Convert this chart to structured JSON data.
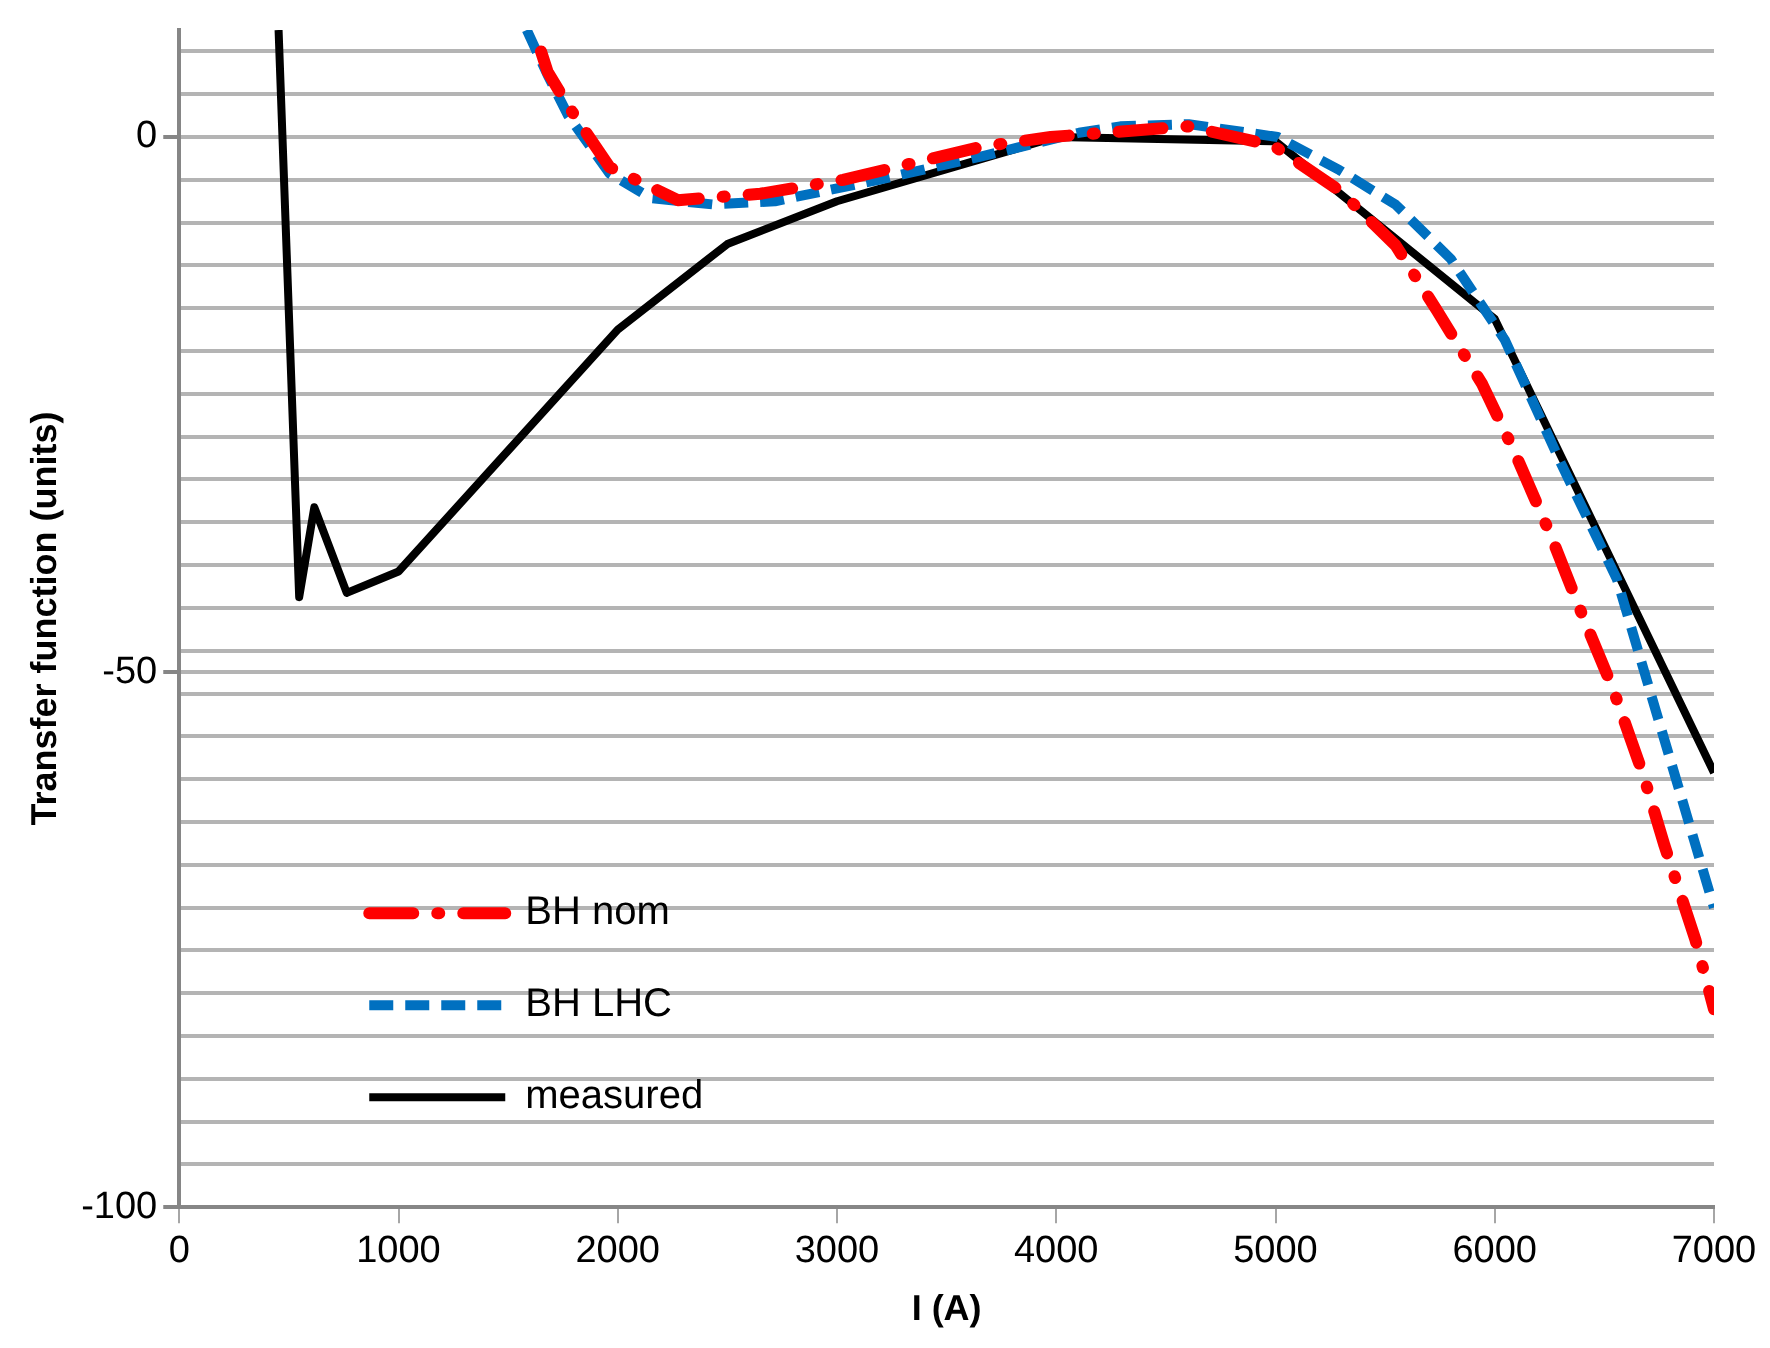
{
  "chart_data": {
    "type": "line",
    "xlabel": "I (A)",
    "ylabel": "Transfer function (units)",
    "xlim": [
      0,
      7000
    ],
    "xticks": [
      0,
      1000,
      2000,
      3000,
      4000,
      5000,
      6000,
      7000
    ],
    "ylim": [
      -100,
      10
    ],
    "yticks": [
      -100,
      {
        "value": -96,
        "label": null
      },
      {
        "value": -92,
        "label": null
      },
      {
        "value": -88,
        "label": null
      },
      {
        "value": -84,
        "label": null
      },
      {
        "value": -80,
        "label": null
      },
      {
        "value": -76,
        "label": null
      },
      {
        "value": -72,
        "label": null
      },
      {
        "value": -68,
        "label": null
      },
      {
        "value": -64,
        "label": null
      },
      {
        "value": -60,
        "label": null
      },
      {
        "value": -56,
        "label": null
      },
      {
        "value": -52,
        "label": null
      },
      -50,
      {
        "value": -48,
        "label": null
      },
      {
        "value": -44,
        "label": null
      },
      {
        "value": -40,
        "label": null
      },
      {
        "value": -36,
        "label": null
      },
      {
        "value": -32,
        "label": null
      },
      {
        "value": -28,
        "label": null
      },
      {
        "value": -24,
        "label": null
      },
      {
        "value": -20,
        "label": null
      },
      {
        "value": -16,
        "label": null
      },
      {
        "value": -12,
        "label": null
      },
      {
        "value": -8,
        "label": null
      },
      {
        "value": -4,
        "label": null
      },
      0,
      {
        "value": 4,
        "label": null
      },
      {
        "value": 8,
        "label": null
      }
    ],
    "grid": "y",
    "legend": "bottom left",
    "marker": "none",
    "series": [
      {
        "name": "BH nom",
        "color": "#ff0000",
        "line_style": "dashdot",
        "x": [
          1650,
          1680,
          1774,
          1962,
          2274,
          2651,
          3028,
          3660,
          3975,
          4600,
          4990,
          5292,
          5547,
          5736,
          5943,
          6085,
          6255,
          6396,
          6538,
          6679,
          6774,
          6915,
          7000
        ],
        "values": [
          8,
          6.1,
          2.9,
          -2.8,
          -5.9,
          -5.3,
          -4,
          -0.9,
          0,
          1,
          -0.8,
          -5,
          -10.1,
          -16.2,
          -23.1,
          -29.2,
          -37.2,
          -44.5,
          -51.5,
          -59.7,
          -66.2,
          -75,
          -81.5
        ]
      },
      {
        "name": "BH LHC",
        "color": "#0070c0",
        "line_style": "dashed",
        "x": [
          1585,
          1680,
          1774,
          1962,
          2150,
          2434,
          2717,
          3189,
          3660,
          4104,
          4292,
          4604,
          5010,
          5292,
          5547,
          5800,
          6047,
          6302,
          6557,
          7000
        ],
        "values": [
          10,
          5.8,
          2,
          -3.4,
          -5.7,
          -6.3,
          -6,
          -4,
          -1.8,
          0.4,
          1,
          1.2,
          0,
          -3.1,
          -6.3,
          -11.4,
          -19,
          -30.5,
          -41.3,
          -72
        ]
      },
      {
        "name": "measured",
        "color": "#000000",
        "line_style": "solid",
        "x": [
          453,
          547,
          616,
          764,
          1000,
          2000,
          2500,
          3000,
          4000,
          5000,
          6000,
          7000
        ],
        "values": [
          10,
          -43,
          -34.6,
          -42.6,
          -40.6,
          -18,
          -10,
          -6,
          0,
          -0.4,
          -17,
          -59.4
        ]
      }
    ]
  }
}
